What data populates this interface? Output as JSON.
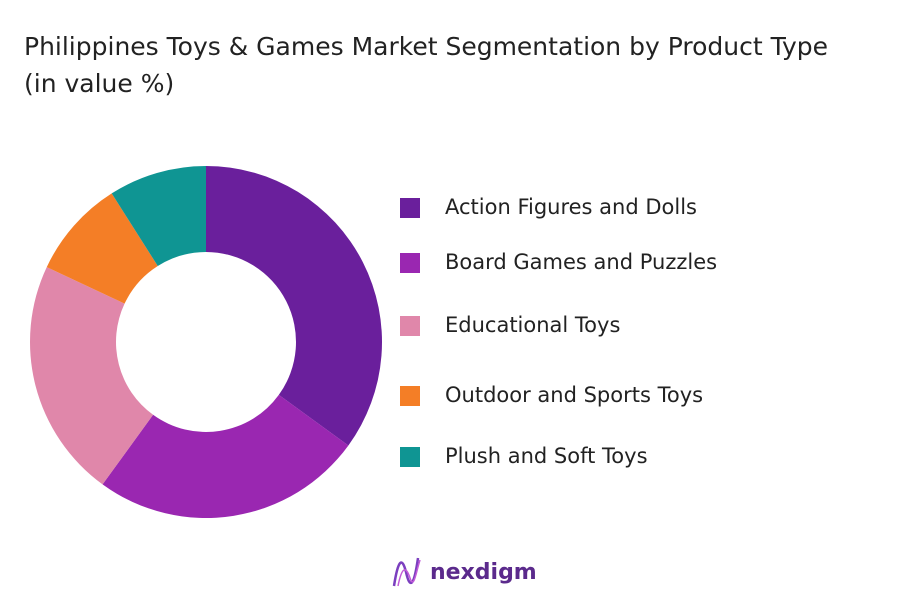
{
  "chart_data": {
    "type": "donut",
    "title": "Philippines Toys & Games Market Segmentation by Product Type (in value %)",
    "categories": [
      "Action Figures and Dolls",
      "Board Games and Puzzles",
      "Educational Toys",
      "Outdoor and Sports Toys",
      "Plush and Soft Toys"
    ],
    "values": [
      35,
      25,
      22,
      9,
      9
    ],
    "colors": [
      "#6a1f9c",
      "#9a27b1",
      "#e087aa",
      "#f47e26",
      "#0f9593"
    ],
    "legend": "right"
  },
  "brand": "nexdigm"
}
